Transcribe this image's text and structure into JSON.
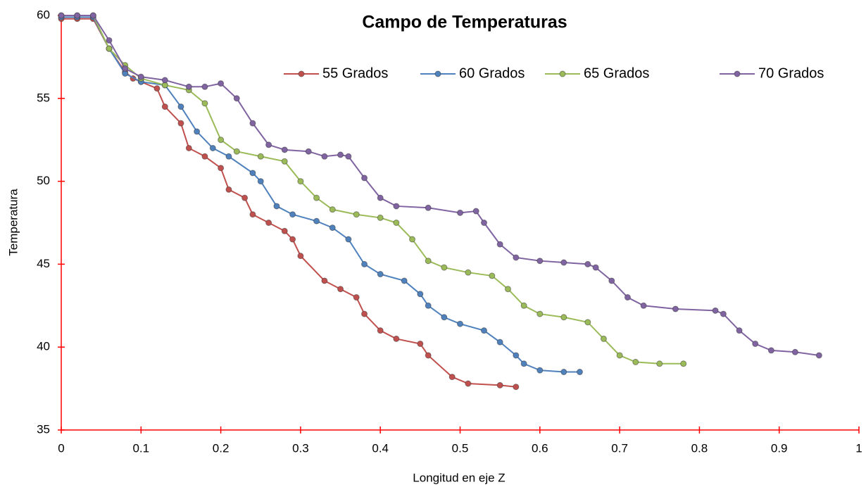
{
  "chart_data": {
    "type": "line",
    "title": "Campo de Temperaturas",
    "x_label": "Longitud en eje Z",
    "y_label": "Temperatura",
    "xlim": [
      0,
      1
    ],
    "xticks": [
      0,
      0.1,
      0.2,
      0.3,
      0.4,
      0.5,
      0.6,
      0.7,
      0.8,
      0.9,
      1
    ],
    "ylim": [
      35,
      60
    ],
    "yticks": [
      35,
      40,
      45,
      50,
      55,
      60
    ],
    "axis_color": "#ff0000",
    "legend": "top",
    "series": [
      {
        "name": "55 Grados",
        "color": "#c0504d",
        "x": [
          0,
          0.02,
          0.04,
          0.06,
          0.08,
          0.09,
          0.1,
          0.12,
          0.13,
          0.15,
          0.16,
          0.18,
          0.2,
          0.21,
          0.23,
          0.24,
          0.26,
          0.28,
          0.29,
          0.3,
          0.33,
          0.35,
          0.37,
          0.38,
          0.4,
          0.42,
          0.45,
          0.46,
          0.49,
          0.51,
          0.55,
          0.57
        ],
        "values": [
          59.8,
          59.8,
          59.8,
          58,
          56.6,
          56.2,
          56,
          55.6,
          54.5,
          53.5,
          52,
          51.5,
          50.8,
          49.5,
          49,
          48,
          47.5,
          47,
          46.5,
          45.5,
          44,
          43.5,
          43,
          42,
          41,
          40.5,
          40.2,
          39.5,
          38.2,
          37.8,
          37.7,
          37.6
        ]
      },
      {
        "name": "60 Grados",
        "color": "#4f81bd",
        "x": [
          0,
          0.02,
          0.04,
          0.06,
          0.08,
          0.1,
          0.13,
          0.15,
          0.17,
          0.19,
          0.21,
          0.24,
          0.25,
          0.27,
          0.29,
          0.32,
          0.34,
          0.36,
          0.38,
          0.4,
          0.43,
          0.45,
          0.46,
          0.48,
          0.5,
          0.53,
          0.55,
          0.57,
          0.58,
          0.6,
          0.63,
          0.65
        ],
        "values": [
          59.9,
          59.9,
          59.9,
          58,
          56.5,
          56,
          55.8,
          54.5,
          53,
          52,
          51.5,
          50.5,
          50,
          48.5,
          48,
          47.6,
          47.2,
          46.5,
          45,
          44.4,
          44,
          43.2,
          42.5,
          41.8,
          41.4,
          41,
          40.3,
          39.5,
          39,
          38.6,
          38.5,
          38.5
        ]
      },
      {
        "name": "65 Grados",
        "color": "#9bbb59",
        "x": [
          0,
          0.02,
          0.04,
          0.06,
          0.08,
          0.1,
          0.13,
          0.16,
          0.18,
          0.2,
          0.22,
          0.25,
          0.28,
          0.3,
          0.32,
          0.34,
          0.37,
          0.4,
          0.42,
          0.44,
          0.46,
          0.48,
          0.51,
          0.54,
          0.56,
          0.58,
          0.6,
          0.63,
          0.66,
          0.68,
          0.7,
          0.72,
          0.75,
          0.78
        ],
        "values": [
          60,
          60,
          60,
          58,
          57,
          56.2,
          55.8,
          55.5,
          54.7,
          52.5,
          51.8,
          51.5,
          51.2,
          50,
          49,
          48.3,
          48,
          47.8,
          47.5,
          46.5,
          45.2,
          44.8,
          44.5,
          44.3,
          43.5,
          42.5,
          42,
          41.8,
          41.5,
          40.5,
          39.5,
          39.1,
          39,
          39
        ]
      },
      {
        "name": "70 Grados",
        "color": "#8064a2",
        "x": [
          0,
          0.02,
          0.04,
          0.06,
          0.08,
          0.1,
          0.13,
          0.16,
          0.18,
          0.2,
          0.22,
          0.24,
          0.26,
          0.28,
          0.31,
          0.33,
          0.35,
          0.36,
          0.38,
          0.4,
          0.42,
          0.46,
          0.5,
          0.52,
          0.53,
          0.55,
          0.57,
          0.6,
          0.63,
          0.66,
          0.67,
          0.69,
          0.71,
          0.73,
          0.77,
          0.82,
          0.83,
          0.85,
          0.87,
          0.89,
          0.92,
          0.95
        ],
        "values": [
          60,
          60,
          60,
          58.5,
          56.8,
          56.3,
          56.1,
          55.7,
          55.7,
          55.9,
          55,
          53.5,
          52.2,
          51.9,
          51.8,
          51.5,
          51.6,
          51.5,
          50.2,
          49,
          48.5,
          48.4,
          48.1,
          48.2,
          47.5,
          46.2,
          45.4,
          45.2,
          45.1,
          45,
          44.8,
          44,
          43,
          42.5,
          42.3,
          42.2,
          42,
          41,
          40.2,
          39.8,
          39.7,
          39.5
        ]
      }
    ]
  }
}
